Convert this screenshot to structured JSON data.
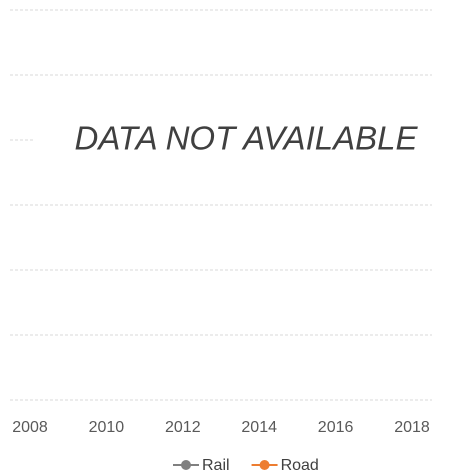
{
  "chart_data": {
    "type": "line",
    "annotation": "DATA NOT AVAILABLE",
    "x": [],
    "series": [
      {
        "name": "Rail",
        "color": "#808080",
        "values": []
      },
      {
        "name": "Road",
        "color": "#ed7d31",
        "values": []
      }
    ],
    "xlim": [
      2008,
      2018
    ],
    "xticks": [
      2008,
      2010,
      2012,
      2014,
      2016,
      2018
    ],
    "grid": true
  }
}
